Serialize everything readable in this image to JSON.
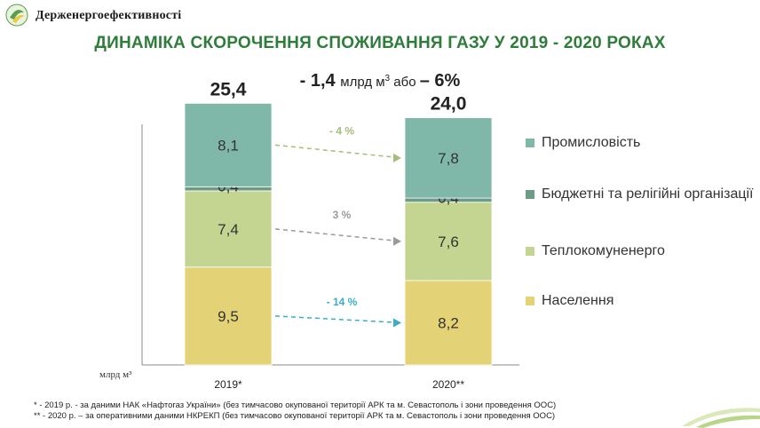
{
  "header": {
    "brand": "Держенергоефективності"
  },
  "chart_data": {
    "type": "bar",
    "stacked": true,
    "title": "ДИНАМІКА СКОРОЧЕННЯ СПОЖИВАННЯ ГАЗУ У 2019 - 2020 РОКАХ",
    "subtitle": {
      "lead": "- 1,4",
      "unit": "млрд м",
      "unit_sup": "3",
      "mid": " або ",
      "tail": "– 6%"
    },
    "categories": [
      "2019*",
      "2020**"
    ],
    "totals": [
      "25,4",
      "24,0"
    ],
    "ylabel": "млрд м³",
    "series": [
      {
        "name": "Населення",
        "values": [
          9.5,
          8.2
        ],
        "labels": [
          "9,5",
          "8,2"
        ],
        "color": "#e3d276"
      },
      {
        "name": "Теплокомуненерго",
        "values": [
          7.4,
          7.6
        ],
        "labels": [
          "7,4",
          "7,6"
        ],
        "color": "#c3d590"
      },
      {
        "name": "Бюджетні та релігійні організації",
        "values": [
          0.4,
          0.4
        ],
        "labels": [
          "0,4",
          "0,4"
        ],
        "color": "#6e9b86"
      },
      {
        "name": "Промисловість",
        "values": [
          8.1,
          7.8
        ],
        "labels": [
          "8,1",
          "7,8"
        ],
        "color": "#7fb8a8"
      }
    ],
    "changes": [
      {
        "series": "Промисловість",
        "label": "- 4 %",
        "color": "#a3bf7c"
      },
      {
        "series": "Теплокомуненерго",
        "label": "3 %",
        "color": "#9a9a9a"
      },
      {
        "series": "Населення",
        "label": "- 14 %",
        "color": "#3aaec8"
      }
    ],
    "legend_position": "right"
  },
  "legend": [
    {
      "label": "Промисловість",
      "color": "#7fb8a8"
    },
    {
      "label": "Бюджетні та релігійні організації",
      "color": "#6e9b86"
    },
    {
      "label": "Теплокомуненерго",
      "color": "#c3d590"
    },
    {
      "label": "Населення",
      "color": "#e3d276"
    }
  ],
  "footnotes": [
    "* - 2019 р. - за даними НАК «Нафтогаз України» (без тимчасово окупованої території АРК та м. Севастополь і зони проведення ООС)",
    "** - 2020 р. – за оперативними даними НКРЕКП (без тимчасово окупованої території АРК та м. Севастополь і зони проведення ООС)"
  ]
}
